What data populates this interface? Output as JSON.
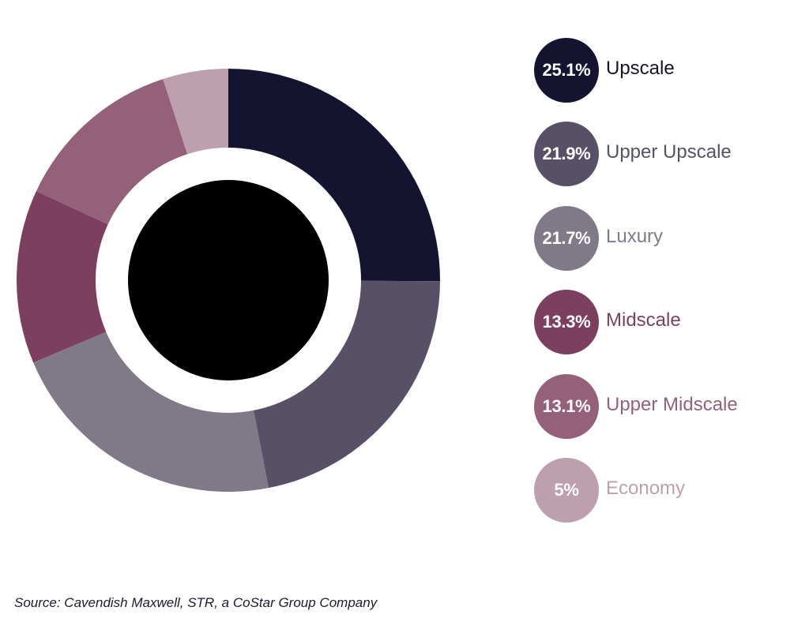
{
  "chart_data": {
    "type": "pie",
    "variant": "donut",
    "categories": [
      "Upscale",
      "Upper Upscale",
      "Luxury",
      "Midscale",
      "Upper Midscale",
      "Economy"
    ],
    "values": [
      25.1,
      21.9,
      21.7,
      13.3,
      13.1,
      5
    ],
    "value_labels": [
      "25.1%",
      "21.9%",
      "21.7%",
      "13.3%",
      "13.1%",
      "5%"
    ],
    "colors": [
      "#141430",
      "#575066",
      "#807a88",
      "#7d3f60",
      "#956079",
      "#bd9fad"
    ],
    "center_color": "#000000",
    "legend_placement": "right"
  },
  "source": "Source: Cavendish Maxwell, STR, a CoStar Group Company"
}
